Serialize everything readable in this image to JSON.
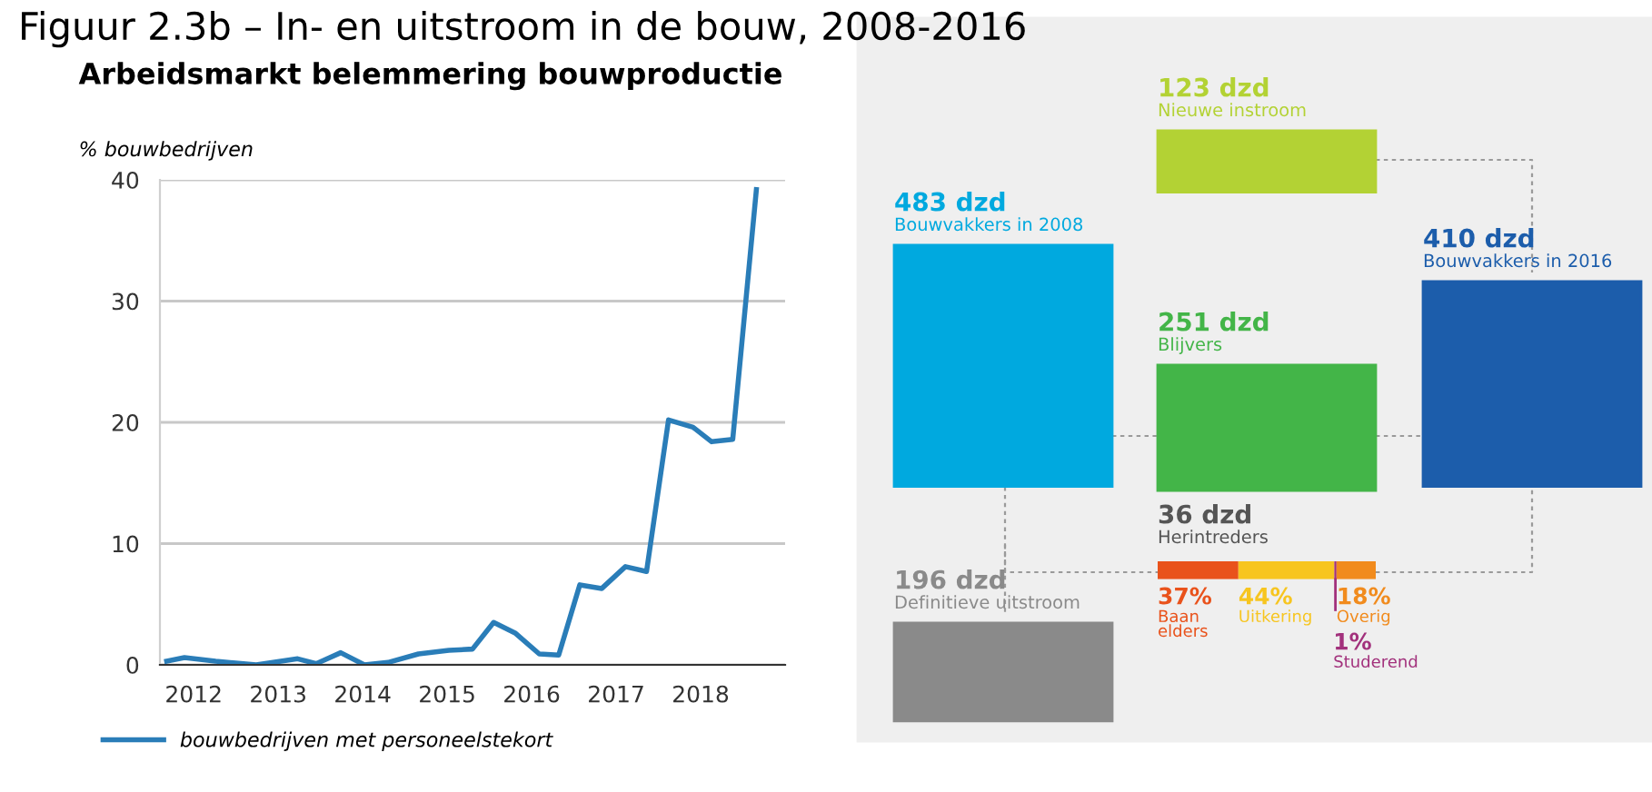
{
  "chart_data": [
    {
      "type": "line",
      "title": "Arbeidsmarkt belemmering bouwproductie",
      "ylabel": "% bouwbedrijven",
      "x": [
        2011.68,
        2011.89,
        2012.26,
        2012.74,
        2013.23,
        2013.45,
        2013.74,
        2014.02,
        2014.3,
        2014.66,
        2015.02,
        2015.3,
        2015.55,
        2015.81,
        2016.09,
        2016.32,
        2016.57,
        2016.83,
        2017.11,
        2017.36,
        2017.62,
        2017.91,
        2018.13,
        2018.38,
        2018.66
      ],
      "series": [
        {
          "name": "bouwbedrijven met personeelstekort",
          "color": "#2a7db8",
          "values": [
            0.3,
            0.6,
            0.3,
            0,
            0.5,
            0.1,
            1.0,
            0,
            0.2,
            0.9,
            1.2,
            1.3,
            3.5,
            2.6,
            0.9,
            0.8,
            6.6,
            6.3,
            8.1,
            7.7,
            20.2,
            19.6,
            18.4,
            18.6,
            39.2
          ]
        }
      ],
      "xlim": [
        2011.6,
        2019.0
      ],
      "xticks": [
        2012,
        2013,
        2014,
        2015,
        2016,
        2017,
        2018
      ],
      "ylim": [
        0,
        40
      ],
      "yticks": [
        0,
        10,
        20,
        30,
        40
      ],
      "grid": "y",
      "legend": "bottom",
      "marker": "none",
      "line_style": "solid"
    },
    {
      "type": "other",
      "title": "Figuur 2.3b – In- en uitstroom in de bouw, 2008-2016",
      "categories": [
        "Bouwvakkers in 2008",
        "Nieuwe instroom",
        "Blijvers",
        "Bouwvakkers in 2016",
        "Definitieve uitstroom",
        "Herintreders"
      ],
      "values": [
        483,
        123,
        251,
        410,
        196,
        36
      ],
      "value_labels": [
        "483 dzd",
        "123 dzd",
        "251 dzd",
        "410 dzd",
        "196 dzd",
        "36 dzd"
      ],
      "colors": [
        "#00a9df",
        "#b3d234",
        "#43b548",
        "#1c5dab",
        "#8a8a8a",
        null
      ]
    },
    {
      "type": "bar",
      "orientation": "horizontal",
      "stacked": true,
      "categories": [
        null
      ],
      "tick_labels": false,
      "series": [
        {
          "name": "Baan elders",
          "color": "#e9521b",
          "values": [
            37
          ],
          "value_labels": [
            "37%"
          ]
        },
        {
          "name": "Uitkering",
          "color": "#f7c51f",
          "values": [
            44
          ],
          "value_labels": [
            "44%"
          ]
        },
        {
          "name": "Studerend",
          "color": "#a2317c",
          "values": [
            1
          ],
          "value_labels": [
            "1%"
          ]
        },
        {
          "name": "Overig",
          "color": "#f18b1d",
          "values": [
            18
          ],
          "value_labels": [
            "18%"
          ]
        }
      ]
    }
  ]
}
